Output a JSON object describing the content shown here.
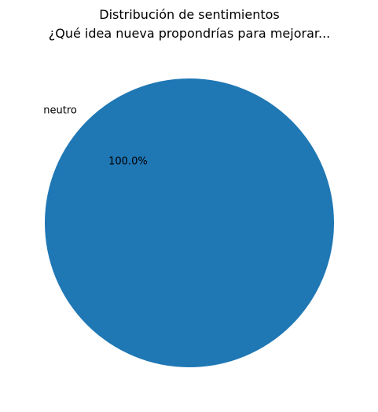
{
  "chart_data": {
    "type": "pie",
    "title": "Distribución de sentimientos",
    "subtitle": "¿Qué idea nueva propondrías para mejorar...",
    "slices": [
      {
        "label": "neutro",
        "value": 100,
        "pct_label": "100.0%",
        "color": "#1f77b4"
      }
    ]
  }
}
